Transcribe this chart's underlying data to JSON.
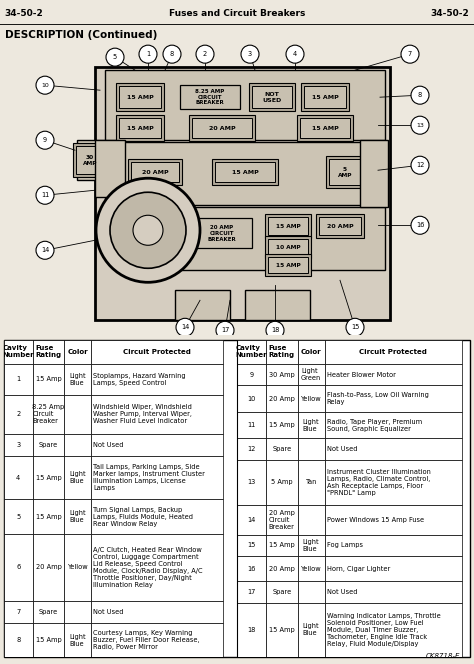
{
  "title_left": "34-50-2",
  "title_center": "Fuses and Circuit Breakers",
  "title_right": "34-50-2",
  "section_title": "DESCRIPTION (Continued)",
  "bg_color": "#ede8de",
  "left_rows": [
    [
      "1",
      "15 Amp",
      "Light\nBlue",
      "Stoplamps, Hazard Warning\nLamps, Speed Control"
    ],
    [
      "2",
      "8.25 Amp\nCircuit\nBreaker",
      "",
      "Windshield Wiper, Windshield\nWasher Pump, Interval Wiper,\nWasher Fluid Level Indicator"
    ],
    [
      "3",
      "Spare",
      "",
      "Not Used"
    ],
    [
      "4",
      "15 Amp",
      "Light\nBlue",
      "Tail Lamps, Parking Lamps, Side\nMarker lamps, Instrument Cluster\nIllumination Lamps, License\nLamps"
    ],
    [
      "5",
      "15 Amp",
      "Light\nBlue",
      "Turn Signal Lamps, Backup\nLamps, Fluids Module, Heated\nRear Window Relay"
    ],
    [
      "6",
      "20 Amp",
      "Yellow",
      "A/C Clutch, Heated Rear Window\nControl, Luggage Compartment\nLid Release, Speed Control\nModule, Clock/Radio Display, A/C\nThrottle Positioner, Day/Night\nIllumination Relay"
    ],
    [
      "7",
      "Spare",
      "",
      "Not Used"
    ],
    [
      "8",
      "15 Amp",
      "Light\nBlue",
      "Courtesy Lamps, Key Warning\nBuzzer, Fuel Filler Door Release,\nRadio, Power Mirror"
    ]
  ],
  "right_rows": [
    [
      "9",
      "30 Amp",
      "Light\nGreen",
      "Heater Blower Motor"
    ],
    [
      "10",
      "20 Amp",
      "Yellow",
      "Flash-to-Pass, Low Oil Warning\nRelay"
    ],
    [
      "11",
      "15 Amp",
      "Light\nBlue",
      "Radio, Tape Player, Premium\nSound, Graphic Equalizer"
    ],
    [
      "12",
      "Spare",
      "",
      "Not Used"
    ],
    [
      "13",
      "5 Amp",
      "Tan",
      "Instrument Cluster Illumination\nLamps, Radio, Climate Control,\nAsh Receptacle Lamps, Floor\n\"PRNDL\" Lamp"
    ],
    [
      "14",
      "20 Amp\nCircuit\nBreaker",
      "",
      "Power Windows 15 Amp Fuse"
    ],
    [
      "15",
      "15 Amp",
      "Light\nBlue",
      "Fog Lamps"
    ],
    [
      "16",
      "20 Amp",
      "Yellow",
      "Horn, Cigar Lighter"
    ],
    [
      "17",
      "Spare",
      "",
      "Not Used"
    ],
    [
      "18",
      "15 Amp",
      "Light\nBlue",
      "Warning Indicator Lamps, Throttle\nSolenoid Positioner, Low Fuel\nModule, Dual Timer Buzzer,\nTachometer, Engine Idle Track\nRelay, Fluid Module/Display"
    ]
  ],
  "footnote": "CK8718-E"
}
